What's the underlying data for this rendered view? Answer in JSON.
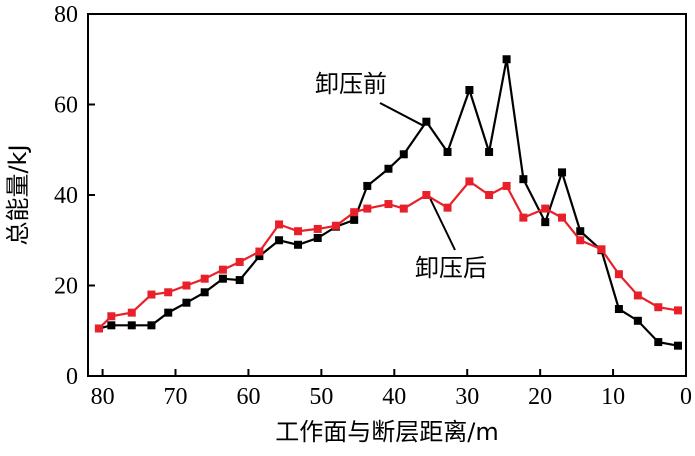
{
  "chart_data": {
    "type": "line",
    "xlabel": "工作面与断层距离/m",
    "ylabel": "总能量/kJ",
    "xlim": [
      82,
      0
    ],
    "ylim": [
      0,
      80
    ],
    "x_axis_reversed": true,
    "xticks": [
      80,
      70,
      60,
      50,
      40,
      30,
      20,
      10,
      0
    ],
    "yticks": [
      0,
      20,
      40,
      60,
      80
    ],
    "grid": false,
    "legend": "none",
    "series": [
      {
        "name": "卸压前",
        "color": "#000000",
        "marker": "square",
        "points": [
          [
            80.5,
            10.5
          ],
          [
            78.8,
            11.2
          ],
          [
            76,
            11.2
          ],
          [
            73.3,
            11.2
          ],
          [
            71,
            14
          ],
          [
            68.5,
            16.2
          ],
          [
            66,
            18.5
          ],
          [
            63.5,
            21.5
          ],
          [
            61.2,
            21.2
          ],
          [
            58.5,
            26.5
          ],
          [
            55.8,
            30
          ],
          [
            53.2,
            29
          ],
          [
            50.5,
            30.5
          ],
          [
            48,
            33
          ],
          [
            45.5,
            34.5
          ],
          [
            43.7,
            42
          ],
          [
            40.8,
            45.8
          ],
          [
            38.7,
            49
          ],
          [
            35.6,
            56.2
          ],
          [
            32.7,
            49.5
          ],
          [
            29.7,
            63.2
          ],
          [
            27,
            49.5
          ],
          [
            24.6,
            70
          ],
          [
            22.3,
            43.5
          ],
          [
            19.3,
            34
          ],
          [
            17,
            45
          ],
          [
            14.5,
            32
          ],
          [
            11.6,
            27.8
          ],
          [
            9.2,
            14.8
          ],
          [
            6.6,
            12.2
          ],
          [
            3.8,
            7.5
          ],
          [
            1.1,
            6.7
          ]
        ]
      },
      {
        "name": "卸压后",
        "color": "#e8202a",
        "marker": "square",
        "points": [
          [
            80.5,
            10.5
          ],
          [
            78.8,
            13.2
          ],
          [
            76,
            14
          ],
          [
            73.3,
            18
          ],
          [
            71,
            18.5
          ],
          [
            68.5,
            20
          ],
          [
            66,
            21.5
          ],
          [
            63.5,
            23.5
          ],
          [
            61.2,
            25.2
          ],
          [
            58.5,
            27.5
          ],
          [
            55.8,
            33.5
          ],
          [
            53.2,
            32
          ],
          [
            50.5,
            32.5
          ],
          [
            48,
            33.2
          ],
          [
            45.5,
            36.2
          ],
          [
            43.7,
            37
          ],
          [
            40.8,
            38
          ],
          [
            38.7,
            37
          ],
          [
            35.6,
            40
          ],
          [
            32.7,
            37.2
          ],
          [
            29.7,
            43
          ],
          [
            27,
            40
          ],
          [
            24.6,
            42
          ],
          [
            22.3,
            35
          ],
          [
            19.3,
            37
          ],
          [
            17,
            35
          ],
          [
            14.5,
            30
          ],
          [
            11.6,
            28
          ],
          [
            9.2,
            22.5
          ],
          [
            6.6,
            17.8
          ],
          [
            3.8,
            15.2
          ],
          [
            1.1,
            14.5
          ]
        ]
      }
    ],
    "annotations": [
      {
        "text": "卸压前",
        "series": 0
      },
      {
        "text": "卸压后",
        "series": 1
      }
    ]
  }
}
